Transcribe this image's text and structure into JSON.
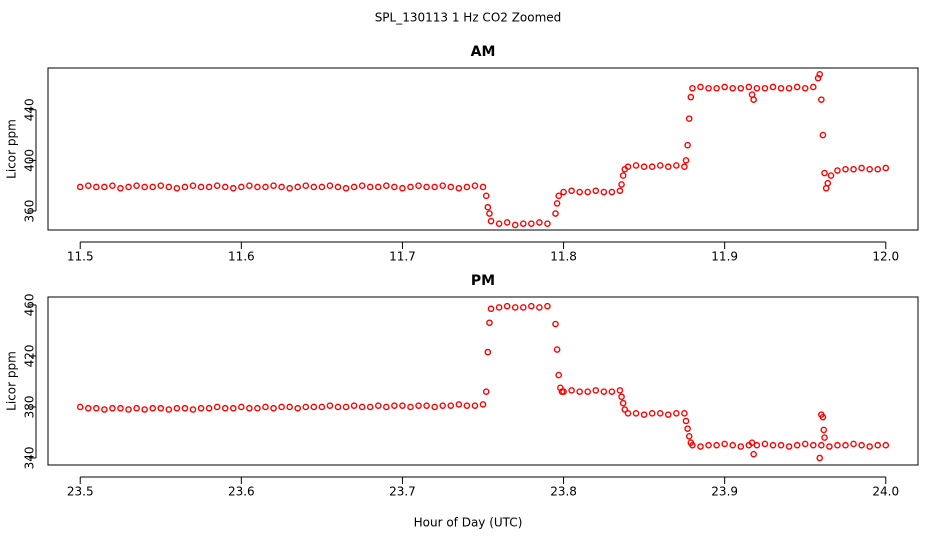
{
  "title": "SPL_130113  1 Hz CO2 Zoomed",
  "x_label": "Hour of Day (UTC)",
  "chart_data": [
    {
      "type": "scatter",
      "title": "AM",
      "y_label": "Licor ppm",
      "color": "#ff0000",
      "xlim": [
        11.48,
        12.02
      ],
      "ylim": [
        345,
        473
      ],
      "xticks": [
        11.5,
        11.6,
        11.7,
        11.8,
        11.9,
        {
          "value": 12,
          "label": "12.0"
        }
      ],
      "yticks": [
        360,
        400,
        440
      ],
      "x": [
        11.5,
        11.505,
        11.51,
        11.515,
        11.52,
        11.525,
        11.53,
        11.535,
        11.54,
        11.545,
        11.55,
        11.555,
        11.56,
        11.565,
        11.57,
        11.575,
        11.58,
        11.585,
        11.59,
        11.595,
        11.6,
        11.605,
        11.61,
        11.615,
        11.62,
        11.625,
        11.63,
        11.635,
        11.64,
        11.645,
        11.65,
        11.655,
        11.66,
        11.665,
        11.67,
        11.675,
        11.68,
        11.685,
        11.69,
        11.695,
        11.7,
        11.705,
        11.71,
        11.715,
        11.72,
        11.725,
        11.73,
        11.735,
        11.74,
        11.745,
        11.75,
        11.752,
        11.753,
        11.754,
        11.755,
        11.76,
        11.765,
        11.77,
        11.775,
        11.78,
        11.785,
        11.79,
        11.795,
        11.796,
        11.797,
        11.8,
        11.805,
        11.81,
        11.815,
        11.82,
        11.825,
        11.83,
        11.835,
        11.836,
        11.837,
        11.838,
        11.84,
        11.845,
        11.85,
        11.855,
        11.86,
        11.865,
        11.87,
        11.875,
        11.876,
        11.877,
        11.878,
        11.879,
        11.88,
        11.885,
        11.89,
        11.895,
        11.9,
        11.905,
        11.91,
        11.915,
        11.92,
        11.925,
        11.93,
        11.935,
        11.94,
        11.945,
        11.95,
        11.955,
        11.917,
        11.918,
        11.958,
        11.959,
        11.96,
        11.961,
        11.962,
        11.963,
        11.964,
        11.966,
        11.97,
        11.975,
        11.98,
        11.985,
        11.99,
        11.995,
        12.0
      ],
      "values": [
        379,
        380,
        379,
        379,
        380,
        378,
        379,
        380,
        379,
        379,
        380,
        379,
        378,
        379,
        380,
        379,
        379,
        380,
        379,
        378,
        379,
        380,
        379,
        379,
        380,
        379,
        378,
        379,
        380,
        379,
        379,
        380,
        379,
        378,
        379,
        380,
        379,
        379,
        380,
        379,
        378,
        379,
        380,
        379,
        379,
        380,
        379,
        378,
        379,
        380,
        379,
        372,
        363,
        358,
        352,
        350,
        351,
        349,
        350,
        350,
        351,
        350,
        358,
        366,
        372,
        375,
        376,
        375,
        375,
        376,
        375,
        375,
        376,
        381,
        388,
        393,
        395,
        396,
        395,
        395,
        396,
        395,
        396,
        395,
        400,
        412,
        433,
        450,
        457,
        458,
        457,
        457,
        458,
        457,
        457,
        458,
        457,
        457,
        458,
        457,
        457,
        458,
        457,
        458,
        452,
        448,
        465,
        468,
        448,
        420,
        390,
        378,
        382,
        388,
        392,
        393,
        393,
        394,
        393,
        393,
        394
      ]
    },
    {
      "type": "scatter",
      "title": "PM",
      "y_label": "Licor ppm",
      "color": "#ff0000",
      "xlim": [
        23.48,
        24.02
      ],
      "ylim": [
        334.5,
        466.2
      ],
      "xticks": [
        23.5,
        23.6,
        23.7,
        23.8,
        23.9,
        {
          "value": 24,
          "label": "24.0"
        }
      ],
      "yticks": [
        340,
        380,
        420,
        460
      ],
      "x": [
        23.5,
        23.505,
        23.51,
        23.515,
        23.52,
        23.525,
        23.53,
        23.535,
        23.54,
        23.545,
        23.55,
        23.555,
        23.56,
        23.565,
        23.57,
        23.575,
        23.58,
        23.585,
        23.59,
        23.595,
        23.6,
        23.605,
        23.61,
        23.615,
        23.62,
        23.625,
        23.63,
        23.635,
        23.64,
        23.645,
        23.65,
        23.655,
        23.66,
        23.665,
        23.67,
        23.675,
        23.68,
        23.685,
        23.69,
        23.695,
        23.7,
        23.705,
        23.71,
        23.715,
        23.72,
        23.725,
        23.73,
        23.735,
        23.74,
        23.745,
        23.75,
        23.752,
        23.753,
        23.754,
        23.755,
        23.76,
        23.765,
        23.77,
        23.775,
        23.78,
        23.785,
        23.79,
        23.795,
        23.796,
        23.797,
        23.798,
        23.799,
        23.8,
        23.805,
        23.81,
        23.815,
        23.82,
        23.825,
        23.83,
        23.835,
        23.836,
        23.837,
        23.838,
        23.84,
        23.845,
        23.85,
        23.855,
        23.86,
        23.865,
        23.87,
        23.875,
        23.876,
        23.877,
        23.878,
        23.879,
        23.88,
        23.885,
        23.89,
        23.895,
        23.9,
        23.905,
        23.91,
        23.915,
        23.92,
        23.925,
        23.93,
        23.935,
        23.94,
        23.945,
        23.95,
        23.955,
        23.96,
        23.965,
        23.97,
        23.975,
        23.98,
        23.985,
        23.99,
        23.995,
        24.0,
        23.917,
        23.918,
        23.959,
        23.96,
        23.961,
        23.9615,
        23.962
      ],
      "values": [
        380,
        379,
        379,
        378,
        379,
        379,
        378,
        379,
        378,
        379,
        379,
        378,
        379,
        379,
        378,
        379,
        379,
        380,
        379,
        379,
        380,
        379,
        379,
        380,
        379,
        380,
        380,
        379,
        380,
        380,
        380,
        381,
        380,
        380,
        381,
        380,
        380,
        381,
        380,
        381,
        381,
        380,
        381,
        381,
        380,
        381,
        381,
        382,
        381,
        381,
        382,
        392,
        423,
        446,
        457,
        458,
        459,
        458,
        458,
        459,
        458,
        459,
        445,
        425,
        405,
        395,
        392,
        392,
        393,
        392,
        392,
        393,
        392,
        392,
        393,
        388,
        383,
        378,
        375,
        375,
        374,
        375,
        375,
        374,
        375,
        375,
        369,
        363,
        357,
        352,
        350,
        349,
        350,
        350,
        351,
        350,
        349,
        350,
        350,
        351,
        350,
        350,
        349,
        350,
        351,
        350,
        350,
        349,
        350,
        350,
        351,
        350,
        349,
        350,
        350,
        352,
        343,
        340,
        374,
        372,
        362,
        356
      ]
    }
  ]
}
